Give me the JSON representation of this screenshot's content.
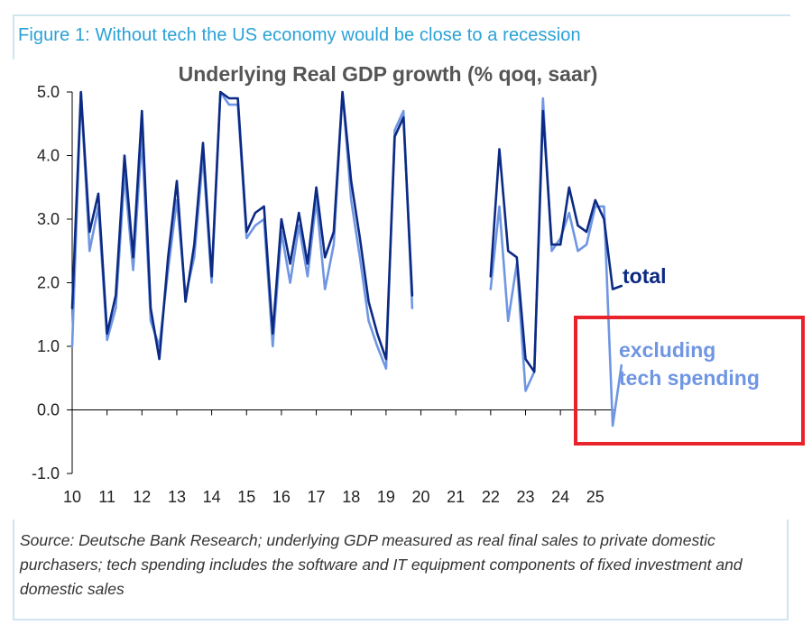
{
  "figure_title": "Figure 1: Without tech the US economy would be close to a recession",
  "source_note": "Source: Deutsche Bank Research; underlying GDP measured as real final sales to private domestic purchasers; tech spending includes the software and IT equipment components of fixed investment and domestic sales",
  "colors": {
    "total": "#0c2a83",
    "excluding_tech": "#6f96e3",
    "title_blue": "#2aa1d6",
    "highlight_box": "#e8232b"
  },
  "chart_data": {
    "type": "line",
    "title": "Underlying Real GDP growth (% qoq, saar)",
    "xlabel": "",
    "ylabel": "",
    "ylim": [
      -1.0,
      5.0
    ],
    "xlim": [
      2010.0,
      2025.6
    ],
    "y_ticks": [
      "5.0",
      "4.0",
      "3.0",
      "2.0",
      "1.0",
      "0.0",
      "-1.0"
    ],
    "x_ticks": [
      "10",
      "11",
      "12",
      "13",
      "14",
      "15",
      "16",
      "17",
      "18",
      "19",
      "20",
      "21",
      "22",
      "23",
      "24",
      "25"
    ],
    "series": [
      {
        "name": "total",
        "label": "total",
        "points": [
          [
            2010.0,
            1.6
          ],
          [
            2010.25,
            5.0
          ],
          [
            2010.5,
            2.8
          ],
          [
            2010.75,
            3.4
          ],
          [
            2011.0,
            1.2
          ],
          [
            2011.25,
            1.8
          ],
          [
            2011.5,
            4.0
          ],
          [
            2011.75,
            2.4
          ],
          [
            2012.0,
            4.7
          ],
          [
            2012.25,
            1.6
          ],
          [
            2012.5,
            0.8
          ],
          [
            2012.75,
            2.4
          ],
          [
            2013.0,
            3.6
          ],
          [
            2013.25,
            1.7
          ],
          [
            2013.5,
            2.6
          ],
          [
            2013.75,
            4.2
          ],
          [
            2014.0,
            2.1
          ],
          [
            2014.25,
            5.0
          ],
          [
            2014.5,
            4.9
          ],
          [
            2014.75,
            4.9
          ],
          [
            2015.0,
            2.8
          ],
          [
            2015.25,
            3.1
          ],
          [
            2015.5,
            3.2
          ],
          [
            2015.75,
            1.2
          ],
          [
            2016.0,
            3.0
          ],
          [
            2016.25,
            2.3
          ],
          [
            2016.5,
            3.1
          ],
          [
            2016.75,
            2.3
          ],
          [
            2017.0,
            3.5
          ],
          [
            2017.25,
            2.4
          ],
          [
            2017.5,
            2.8
          ],
          [
            2017.75,
            5.0
          ],
          [
            2018.0,
            3.6
          ],
          [
            2018.25,
            2.7
          ],
          [
            2018.5,
            1.7
          ],
          [
            2018.75,
            1.2
          ],
          [
            2019.0,
            0.8
          ],
          [
            2019.25,
            4.3
          ],
          [
            2019.5,
            4.6
          ],
          [
            2019.75,
            1.8
          ],
          null,
          [
            2022.0,
            2.1
          ],
          [
            2022.25,
            4.1
          ],
          [
            2022.5,
            2.5
          ],
          [
            2022.75,
            2.4
          ],
          [
            2023.0,
            0.8
          ],
          [
            2023.25,
            0.6
          ],
          [
            2023.5,
            4.7
          ],
          [
            2023.75,
            2.6
          ],
          [
            2024.0,
            2.6
          ],
          [
            2024.25,
            3.5
          ],
          [
            2024.5,
            2.9
          ],
          [
            2024.75,
            2.8
          ],
          [
            2025.0,
            3.3
          ],
          [
            2025.25,
            3.0
          ],
          [
            2025.5,
            1.9
          ],
          [
            2025.75,
            1.95
          ]
        ]
      },
      {
        "name": "excluding tech spending",
        "label": "excluding tech spending",
        "points": [
          [
            2010.0,
            1.0
          ],
          [
            2010.25,
            5.0
          ],
          [
            2010.5,
            2.5
          ],
          [
            2010.75,
            3.2
          ],
          [
            2011.0,
            1.1
          ],
          [
            2011.25,
            1.6
          ],
          [
            2011.5,
            3.7
          ],
          [
            2011.75,
            2.2
          ],
          [
            2012.0,
            4.3
          ],
          [
            2012.25,
            1.4
          ],
          [
            2012.5,
            1.0
          ],
          [
            2012.75,
            2.2
          ],
          [
            2013.0,
            3.3
          ],
          [
            2013.25,
            1.8
          ],
          [
            2013.5,
            2.4
          ],
          [
            2013.75,
            4.0
          ],
          [
            2014.0,
            2.0
          ],
          [
            2014.25,
            5.0
          ],
          [
            2014.5,
            4.8
          ],
          [
            2014.75,
            4.8
          ],
          [
            2015.0,
            2.7
          ],
          [
            2015.25,
            2.9
          ],
          [
            2015.5,
            3.0
          ],
          [
            2015.75,
            1.0
          ],
          [
            2016.0,
            2.8
          ],
          [
            2016.25,
            2.0
          ],
          [
            2016.5,
            2.9
          ],
          [
            2016.75,
            2.1
          ],
          [
            2017.0,
            3.3
          ],
          [
            2017.25,
            1.9
          ],
          [
            2017.5,
            2.6
          ],
          [
            2017.75,
            5.0
          ],
          [
            2018.0,
            3.3
          ],
          [
            2018.25,
            2.4
          ],
          [
            2018.5,
            1.4
          ],
          [
            2018.75,
            1.0
          ],
          [
            2019.0,
            0.65
          ],
          [
            2019.25,
            4.4
          ],
          [
            2019.5,
            4.7
          ],
          [
            2019.75,
            1.6
          ],
          null,
          [
            2022.0,
            1.9
          ],
          [
            2022.25,
            3.2
          ],
          [
            2022.5,
            1.4
          ],
          [
            2022.75,
            2.3
          ],
          [
            2023.0,
            0.3
          ],
          [
            2023.25,
            0.6
          ],
          [
            2023.5,
            4.9
          ],
          [
            2023.75,
            2.5
          ],
          [
            2024.0,
            2.7
          ],
          [
            2024.25,
            3.1
          ],
          [
            2024.5,
            2.5
          ],
          [
            2024.75,
            2.6
          ],
          [
            2025.0,
            3.2
          ],
          [
            2025.25,
            3.2
          ],
          [
            2025.5,
            -0.25
          ],
          [
            2025.75,
            0.7
          ]
        ]
      }
    ],
    "grid": false,
    "legend": "inline labels right"
  }
}
